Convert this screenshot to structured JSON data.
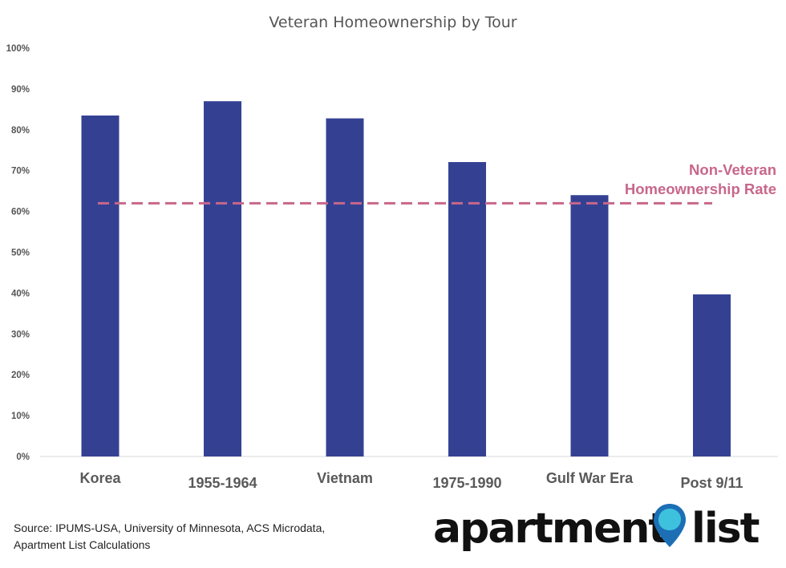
{
  "chart_data": {
    "type": "bar",
    "title": "Veteran Homeownership by Tour",
    "categories": [
      "Korea",
      "1955-1964",
      "Vietnam",
      "1975-1990",
      "Gulf War Era",
      "Post 9/11"
    ],
    "values": [
      83.5,
      87.0,
      82.8,
      72.1,
      64.0,
      39.7
    ],
    "ylim": [
      0,
      100
    ],
    "yticks": [
      "0%",
      "10%",
      "20%",
      "30%",
      "40%",
      "50%",
      "60%",
      "70%",
      "80%",
      "90%",
      "100%"
    ],
    "grid": false,
    "bar_color": "#344193",
    "reference_line": {
      "value": 62,
      "label_lines": [
        "Non-Veteran",
        "Homeownership Rate"
      ],
      "color": "#c8678a",
      "style": "dashed"
    }
  },
  "source": {
    "line1": "Source: IPUMS-USA, University of Minnesota, ACS Microdata,",
    "line2": "Apartment List Calculations"
  },
  "logo": {
    "word1": "apartment",
    "word2": "list",
    "pin_icon": "map-pin-icon",
    "pin_colors": [
      "#1c6fb5",
      "#3ec1dd"
    ]
  }
}
